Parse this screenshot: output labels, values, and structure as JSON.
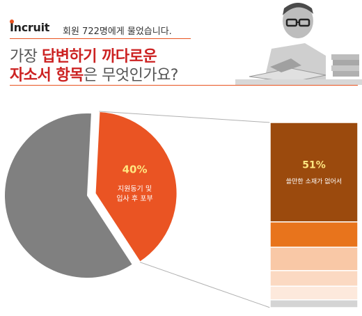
{
  "header": {
    "brand": "Incruit",
    "subtitle": "회원 722명에게 물었습니다.",
    "question_line1_prefix": "가장 ",
    "question_line1_highlight": "답변하기 까다로운",
    "question_line2_highlight": "자소서 항목",
    "question_line2_suffix": "은 무엇인가요?"
  },
  "chart_data": {
    "type": "pie",
    "title": "가장 답변하기 까다로운 자소서 항목은 무엇인가요?",
    "slices": [
      {
        "label": "지원동기 및 입사 후 포부",
        "value": 40,
        "color": "#ea5423"
      },
      {
        "label": "",
        "value": 60,
        "color": "#808080"
      }
    ],
    "breakdown": {
      "of_slice": "remaining",
      "segments": [
        {
          "label": "쓸만한 소재가 없어서",
          "value": 51,
          "color": "#9b4a0d"
        },
        {
          "label": "",
          "value": 13,
          "color": "#e8741c"
        },
        {
          "label": "",
          "value": 12,
          "color": "#f9c8a6"
        },
        {
          "label": "",
          "value": 8,
          "color": "#fbd9c2"
        },
        {
          "label": "",
          "value": 7,
          "color": "#fde9dc"
        },
        {
          "label": "",
          "value": 4,
          "color": "#d4d4d4"
        }
      ]
    },
    "value_suffix": "%",
    "pie_label_line1": "지원동기 및",
    "pie_label_line2": "입사 후 포부"
  }
}
